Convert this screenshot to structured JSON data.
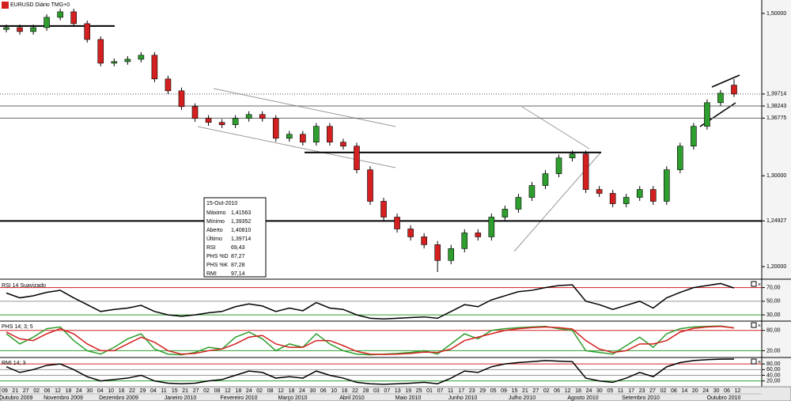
{
  "chart_data": [
    {
      "type": "candlestick",
      "title": "EURUSD Diário TMG+0",
      "log": true,
      "up_color": "#2e9e2e",
      "down_color": "#d42020",
      "ylim": [
        1.1876,
        1.5178
      ],
      "yticks": [
        {
          "value": 1.5,
          "label": "1,50000"
        },
        {
          "value": 1.39714,
          "label": "1,39714"
        },
        {
          "value": 1.38243,
          "label": "1,38243"
        },
        {
          "value": 1.36775,
          "label": "1,36775"
        },
        {
          "value": 1.3,
          "label": "1,30000"
        },
        {
          "value": 1.24927,
          "label": "1,24927"
        },
        {
          "value": 1.2,
          "label": "1,20000"
        }
      ],
      "hlines": [
        {
          "value": 1.39714,
          "style": "dotted"
        },
        {
          "value": 1.38243,
          "style": "thin"
        },
        {
          "value": 1.36775,
          "style": "thin"
        },
        {
          "value": 1.24927,
          "style": "bold"
        },
        {
          "value": 1.4834,
          "style": "bold"
        },
        {
          "value": 1.327,
          "style": "bold"
        }
      ],
      "ohlc": [
        [
          1.479,
          1.4853,
          1.475,
          1.4813
        ],
        [
          1.4813,
          1.4853,
          1.4722,
          1.4762
        ],
        [
          1.4762,
          1.4853,
          1.4722,
          1.4813
        ],
        [
          1.4813,
          1.4988,
          1.4773,
          1.4948
        ],
        [
          1.4948,
          1.5061,
          1.4908,
          1.5021
        ],
        [
          1.5021,
          1.5061,
          1.4825,
          1.4865
        ],
        [
          1.4865,
          1.4905,
          1.4619,
          1.4659
        ],
        [
          1.4659,
          1.4699,
          1.4316,
          1.4356
        ],
        [
          1.4356,
          1.4416,
          1.4316,
          1.4376
        ],
        [
          1.4376,
          1.4446,
          1.4336,
          1.4406
        ],
        [
          1.4406,
          1.4497,
          1.4366,
          1.4457
        ],
        [
          1.4457,
          1.4497,
          1.4118,
          1.4158
        ],
        [
          1.4158,
          1.4198,
          1.3971,
          1.4011
        ],
        [
          1.4011,
          1.4051,
          1.3777,
          1.3817
        ],
        [
          1.3817,
          1.3857,
          1.3634,
          1.3674
        ],
        [
          1.3674,
          1.3714,
          1.3586,
          1.3626
        ],
        [
          1.3626,
          1.3666,
          1.3558,
          1.3598
        ],
        [
          1.3598,
          1.3714,
          1.3558,
          1.3674
        ],
        [
          1.3674,
          1.3761,
          1.3634,
          1.3721
        ],
        [
          1.3721,
          1.3761,
          1.3634,
          1.3674
        ],
        [
          1.3674,
          1.3714,
          1.3397,
          1.3437
        ],
        [
          1.3437,
          1.3524,
          1.3397,
          1.3484
        ],
        [
          1.3484,
          1.3524,
          1.3351,
          1.3391
        ],
        [
          1.3391,
          1.3619,
          1.3351,
          1.3579
        ],
        [
          1.3579,
          1.3619,
          1.3351,
          1.3391
        ],
        [
          1.3391,
          1.3431,
          1.3304,
          1.3344
        ],
        [
          1.3344,
          1.3384,
          1.3029,
          1.3069
        ],
        [
          1.3069,
          1.3109,
          1.2671,
          1.2711
        ],
        [
          1.2711,
          1.2751,
          1.2495,
          1.2535
        ],
        [
          1.2535,
          1.2575,
          1.2365,
          1.2405
        ],
        [
          1.2405,
          1.2445,
          1.2279,
          1.2319
        ],
        [
          1.2319,
          1.2359,
          1.2194,
          1.2234
        ],
        [
          1.2234,
          1.2274,
          1.1943,
          1.2065
        ],
        [
          1.2065,
          1.2232,
          1.2025,
          1.2192
        ],
        [
          1.2192,
          1.2402,
          1.2152,
          1.2362
        ],
        [
          1.2362,
          1.2402,
          1.2279,
          1.2319
        ],
        [
          1.2319,
          1.2575,
          1.2279,
          1.2535
        ],
        [
          1.2535,
          1.2663,
          1.2495,
          1.2623
        ],
        [
          1.2623,
          1.2795,
          1.2583,
          1.2755
        ],
        [
          1.2755,
          1.2929,
          1.2715,
          1.2889
        ],
        [
          1.2889,
          1.3064,
          1.2849,
          1.3024
        ],
        [
          1.3024,
          1.3246,
          1.2984,
          1.3206
        ],
        [
          1.3206,
          1.3292,
          1.3166,
          1.3252
        ],
        [
          1.3252,
          1.3292,
          1.2804,
          1.2844
        ],
        [
          1.2844,
          1.2884,
          1.276,
          1.28
        ],
        [
          1.28,
          1.284,
          1.2644,
          1.2684
        ],
        [
          1.2684,
          1.2795,
          1.2644,
          1.2755
        ],
        [
          1.2755,
          1.2884,
          1.2715,
          1.2844
        ],
        [
          1.2844,
          1.2884,
          1.2671,
          1.2711
        ],
        [
          1.2711,
          1.3109,
          1.2671,
          1.3069
        ],
        [
          1.3069,
          1.3384,
          1.3029,
          1.3344
        ],
        [
          1.3344,
          1.3619,
          1.3304,
          1.3579
        ],
        [
          1.3579,
          1.3905,
          1.3539,
          1.3865
        ],
        [
          1.3865,
          1.4021,
          1.3825,
          1.3981
        ],
        [
          1.4081,
          1.41563,
          1.39352,
          1.39714
        ]
      ],
      "x_day_labels": [
        "09",
        "21",
        "27",
        "02",
        "06",
        "12",
        "18",
        "24",
        "30",
        "04",
        "10",
        "16",
        "22",
        "29",
        "04",
        "11",
        "15",
        "21",
        "27",
        "02",
        "08",
        "12",
        "18",
        "24",
        "02",
        "08",
        "12",
        "18",
        "24",
        "30",
        "06",
        "10",
        "16",
        "22",
        "28",
        "03",
        "07",
        "13",
        "19",
        "25",
        "01",
        "07",
        "11",
        "17",
        "23",
        "29",
        "05",
        "09",
        "15",
        "21",
        "27",
        "02",
        "06",
        "12",
        "18",
        "24",
        "30",
        "05",
        "11",
        "17",
        "23",
        "27",
        "02",
        "08",
        "14",
        "20",
        "24",
        "30",
        "06",
        "12"
      ],
      "x_month_labels": [
        "Outubro 2009",
        "Novembro 2009",
        "Dezembro 2009",
        "Janeiro 2010",
        "Fevereiro 2010",
        "Março 2010",
        "Abril 2010",
        "Maio 2010",
        "Junho 2010",
        "Julho 2010",
        "Agosto 2010",
        "Setembro 2010",
        "Outubro 2010"
      ]
    },
    {
      "type": "line",
      "title": "RSI 14 Suavizado",
      "ylim": [
        22,
        80
      ],
      "yticks": [
        {
          "value": 70,
          "label": "70,00"
        },
        {
          "value": 50,
          "label": "50,00"
        },
        {
          "value": 30,
          "label": "30,00"
        }
      ],
      "hlines": [
        {
          "value": 70,
          "color": "#d42020"
        },
        {
          "value": 50,
          "color": "#999999"
        },
        {
          "value": 30,
          "color": "#2e9e2e"
        }
      ],
      "series": [
        {
          "name": "RSI",
          "color": "#000000",
          "values": [
            62,
            55,
            58,
            63,
            66,
            55,
            45,
            35,
            38,
            40,
            44,
            35,
            30,
            28,
            30,
            33,
            35,
            42,
            46,
            43,
            35,
            40,
            36,
            48,
            40,
            38,
            30,
            25,
            24,
            25,
            26,
            27,
            25,
            35,
            45,
            42,
            52,
            58,
            64,
            66,
            70,
            73,
            74,
            50,
            45,
            38,
            44,
            50,
            40,
            55,
            63,
            70,
            73,
            76,
            69.43
          ]
        }
      ]
    },
    {
      "type": "line",
      "title": "PHS 14; 3; 5",
      "ylim": [
        0,
        105
      ],
      "yticks": [
        {
          "value": 80,
          "label": "80,00"
        },
        {
          "value": 20,
          "label": "20,00"
        }
      ],
      "hlines": [
        {
          "value": 80,
          "color": "#d42020"
        },
        {
          "value": 20,
          "color": "#2e9e2e"
        }
      ],
      "series": [
        {
          "name": "PHS %K",
          "color": "#2e9e2e",
          "values": [
            70,
            40,
            60,
            85,
            90,
            50,
            20,
            10,
            30,
            55,
            70,
            25,
            10,
            8,
            15,
            30,
            25,
            60,
            75,
            55,
            20,
            40,
            30,
            70,
            40,
            20,
            10,
            8,
            10,
            12,
            15,
            20,
            10,
            40,
            70,
            55,
            80,
            85,
            88,
            90,
            92,
            85,
            80,
            20,
            15,
            10,
            35,
            60,
            30,
            70,
            85,
            90,
            92,
            93,
            87.28
          ]
        },
        {
          "name": "PHS %D",
          "color": "#d42020",
          "values": [
            75,
            55,
            50,
            70,
            85,
            70,
            40,
            20,
            20,
            40,
            60,
            45,
            20,
            10,
            12,
            20,
            25,
            40,
            60,
            65,
            40,
            30,
            30,
            50,
            50,
            35,
            18,
            10,
            9,
            10,
            12,
            16,
            15,
            25,
            50,
            60,
            70,
            80,
            85,
            88,
            90,
            88,
            84,
            50,
            25,
            15,
            20,
            40,
            40,
            50,
            75,
            86,
            90,
            92,
            87.27
          ]
        }
      ]
    },
    {
      "type": "line",
      "title": "RMI 14; 3",
      "ylim": [
        5,
        100
      ],
      "yticks": [
        {
          "value": 80,
          "label": "80,00"
        },
        {
          "value": 60,
          "label": "60,00"
        },
        {
          "value": 40,
          "label": "40,00"
        },
        {
          "value": 20,
          "label": "20,00"
        }
      ],
      "hlines": [
        {
          "value": 80,
          "color": "#d42020"
        },
        {
          "value": 60,
          "color": "#999999"
        },
        {
          "value": 40,
          "color": "#999999"
        },
        {
          "value": 20,
          "color": "#2e9e2e"
        }
      ],
      "series": [
        {
          "name": "RMI",
          "color": "#000000",
          "values": [
            70,
            50,
            60,
            75,
            80,
            60,
            35,
            20,
            25,
            30,
            40,
            20,
            12,
            10,
            12,
            20,
            25,
            40,
            55,
            50,
            30,
            35,
            30,
            55,
            40,
            30,
            15,
            10,
            8,
            10,
            12,
            15,
            10,
            30,
            55,
            50,
            70,
            80,
            85,
            88,
            92,
            90,
            88,
            30,
            20,
            15,
            30,
            50,
            35,
            70,
            85,
            92,
            95,
            97,
            97.14
          ]
        }
      ]
    }
  ],
  "info_box": {
    "date": "15-Out-2010",
    "rows": [
      {
        "label": "Máximo",
        "value": "1,41563"
      },
      {
        "label": "Mínimo",
        "value": "1,39352"
      },
      {
        "label": "Aberto",
        "value": "1,40810"
      },
      {
        "label": "Último",
        "value": "1,39714"
      },
      {
        "label": "RSI",
        "value": "69,43"
      },
      {
        "label": "PHS %D",
        "value": "87,27",
        "color": "#d42020"
      },
      {
        "label": "PHS %K",
        "value": "87,28",
        "color": "#2e9e2e"
      },
      {
        "label": "RMI",
        "value": "97,14"
      }
    ]
  }
}
